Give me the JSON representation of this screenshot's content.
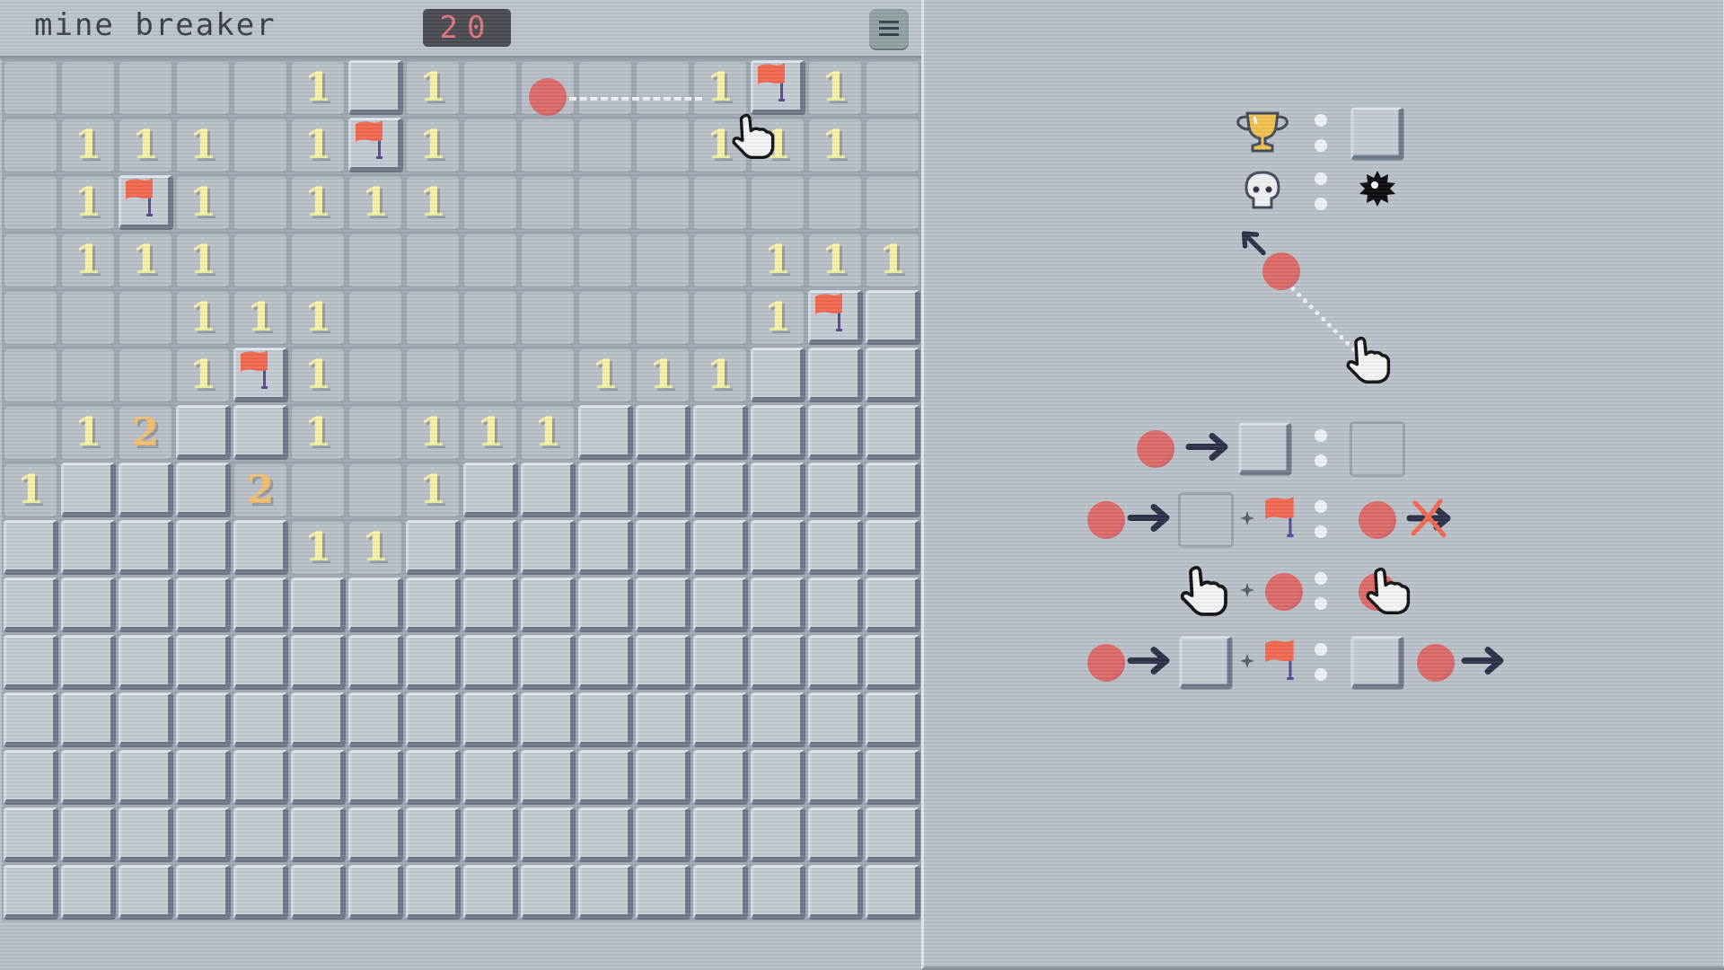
{
  "header": {
    "title": "mine breaker",
    "counter": "20",
    "menu_icon": "hamburger-menu-icon"
  },
  "board": {
    "cols": 16,
    "legend": {
      ".": "revealed-empty",
      "#": "covered",
      "F": "flagged",
      "1": "number-1",
      "2": "number-2"
    },
    "rows": [
      ".....1#1....1F1.",
      ".111.1F1....111.",
      ".1F1.111........",
      ".111.........111",
      "...111.......1F#",
      "...1F1....111###",
      ".12##1.111######",
      "1###2..1########",
      "#####11#########",
      "################",
      "################",
      "################",
      "################",
      "################",
      "################"
    ],
    "hint_overlay": {
      "marker_cell": [
        0,
        9
      ],
      "pointer_cell": [
        1,
        12
      ],
      "icons": [
        "red-dot-icon",
        "dashed-line",
        "hand-cursor-icon"
      ]
    }
  },
  "instructions": {
    "rows": [
      [
        "trophy-icon",
        "colon",
        "covered-tile"
      ],
      [
        "skull-icon",
        "colon",
        "mine-icon"
      ],
      [
        "arrow-up-left-icon",
        "red-dot-icon",
        "dotted-path",
        "hand-cursor-icon"
      ],
      [
        "red-dot-icon",
        "arrow-right-icon",
        "covered-tile",
        "colon",
        "outlined-tile"
      ],
      [
        "red-dot-icon",
        "arrow-right-icon",
        "outlined-tile",
        "plus-icon",
        "flag-icon",
        "colon",
        "red-dot-icon",
        "crossed-arrow-icon"
      ],
      [
        "hand-cursor-icon",
        "plus-icon",
        "red-dot-icon",
        "colon",
        "hand-on-dot-icon"
      ],
      [
        "red-dot-icon",
        "arrow-right-icon",
        "covered-tile",
        "plus-icon",
        "flag-icon",
        "colon",
        "covered-tile",
        "red-dot-icon",
        "arrow-right-icon"
      ]
    ]
  },
  "colors": {
    "background": "#b9c0c8",
    "number_1": "#f6f2a4",
    "number_2": "#f2bd72",
    "flag": "#f26850",
    "flag_pole": "#5a4a9a",
    "dot": "#dd6a68",
    "counter_digits": "#e0747a",
    "arrow": "#2e3048"
  }
}
